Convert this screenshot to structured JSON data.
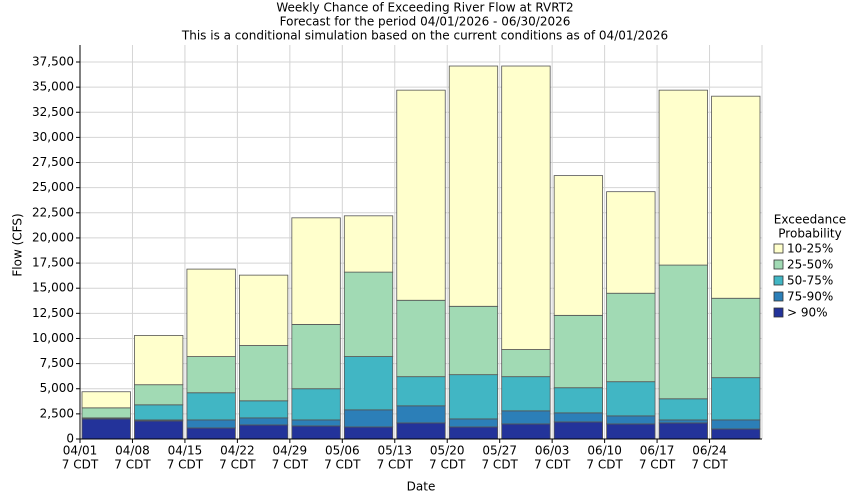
{
  "chart_data": {
    "type": "stacked_bar",
    "title": "Weekly Chance of Exceeding River Flow at RVRT2",
    "subtitle": [
      "Forecast for the period 04/01/2026 - 06/30/2026",
      "This is a conditional simulation based on the current conditions as of 04/01/2026"
    ],
    "y_label": "Flow (CFS)",
    "x_label": "Date",
    "legend_title": [
      "Exceedance",
      "Probability"
    ],
    "legend_position": "right",
    "grid": true,
    "categories": [
      [
        "04/01",
        "7 CDT"
      ],
      [
        "04/08",
        "7 CDT"
      ],
      [
        "04/15",
        "7 CDT"
      ],
      [
        "04/22",
        "7 CDT"
      ],
      [
        "04/29",
        "7 CDT"
      ],
      [
        "05/06",
        "7 CDT"
      ],
      [
        "05/13",
        "7 CDT"
      ],
      [
        "05/20",
        "7 CDT"
      ],
      [
        "05/27",
        "7 CDT"
      ],
      [
        "06/03",
        "7 CDT"
      ],
      [
        "06/10",
        "7 CDT"
      ],
      [
        "06/17",
        "7 CDT"
      ],
      [
        "06/24",
        "7 CDT"
      ]
    ],
    "series": [
      {
        "name": "> 90%",
        "color": "#23339a",
        "values": [
          2000,
          1800,
          1100,
          1400,
          1300,
          1200,
          1600,
          1200,
          1500,
          1700,
          1500,
          1600,
          1000
        ]
      },
      {
        "name": "75-90%",
        "color": "#2c7fb8",
        "values": [
          100,
          100,
          800,
          700,
          600,
          1700,
          1700,
          800,
          1300,
          900,
          800,
          300,
          900
        ]
      },
      {
        "name": "50-75%",
        "color": "#41b6c4",
        "values": [
          0,
          1500,
          2700,
          1700,
          3100,
          5300,
          2900,
          4400,
          3400,
          2500,
          3400,
          2100,
          4200
        ]
      },
      {
        "name": "25-50%",
        "color": "#a1dab4",
        "values": [
          1000,
          2000,
          3600,
          5500,
          6400,
          8400,
          7600,
          6800,
          2700,
          7200,
          8800,
          13300,
          7900
        ]
      },
      {
        "name": "10-25%",
        "color": "#ffffcc",
        "values": [
          1600,
          4900,
          8700,
          7000,
          10600,
          5600,
          20900,
          23900,
          28200,
          13900,
          10100,
          17400,
          20100
        ]
      }
    ],
    "ylim": [
      0,
      37500
    ],
    "yticks": [
      0,
      {
        "value": 2500,
        "label": "2,500"
      },
      {
        "value": 5000,
        "label": "5,000"
      },
      {
        "value": 7500,
        "label": "7,500"
      },
      {
        "value": 10000,
        "label": "10,000"
      },
      {
        "value": 12500,
        "label": "12,500"
      },
      {
        "value": 15000,
        "label": "15,000"
      },
      {
        "value": 17500,
        "label": "17,500"
      },
      {
        "value": 20000,
        "label": "20,000"
      },
      {
        "value": 22500,
        "label": "22,500"
      },
      {
        "value": 25000,
        "label": "25,000"
      },
      {
        "value": 27500,
        "label": "27,500"
      },
      {
        "value": 30000,
        "label": "30,000"
      },
      {
        "value": 32500,
        "label": "32,500"
      },
      {
        "value": 35000,
        "label": "35,000"
      },
      {
        "value": 37500,
        "label": "37,500"
      }
    ]
  }
}
